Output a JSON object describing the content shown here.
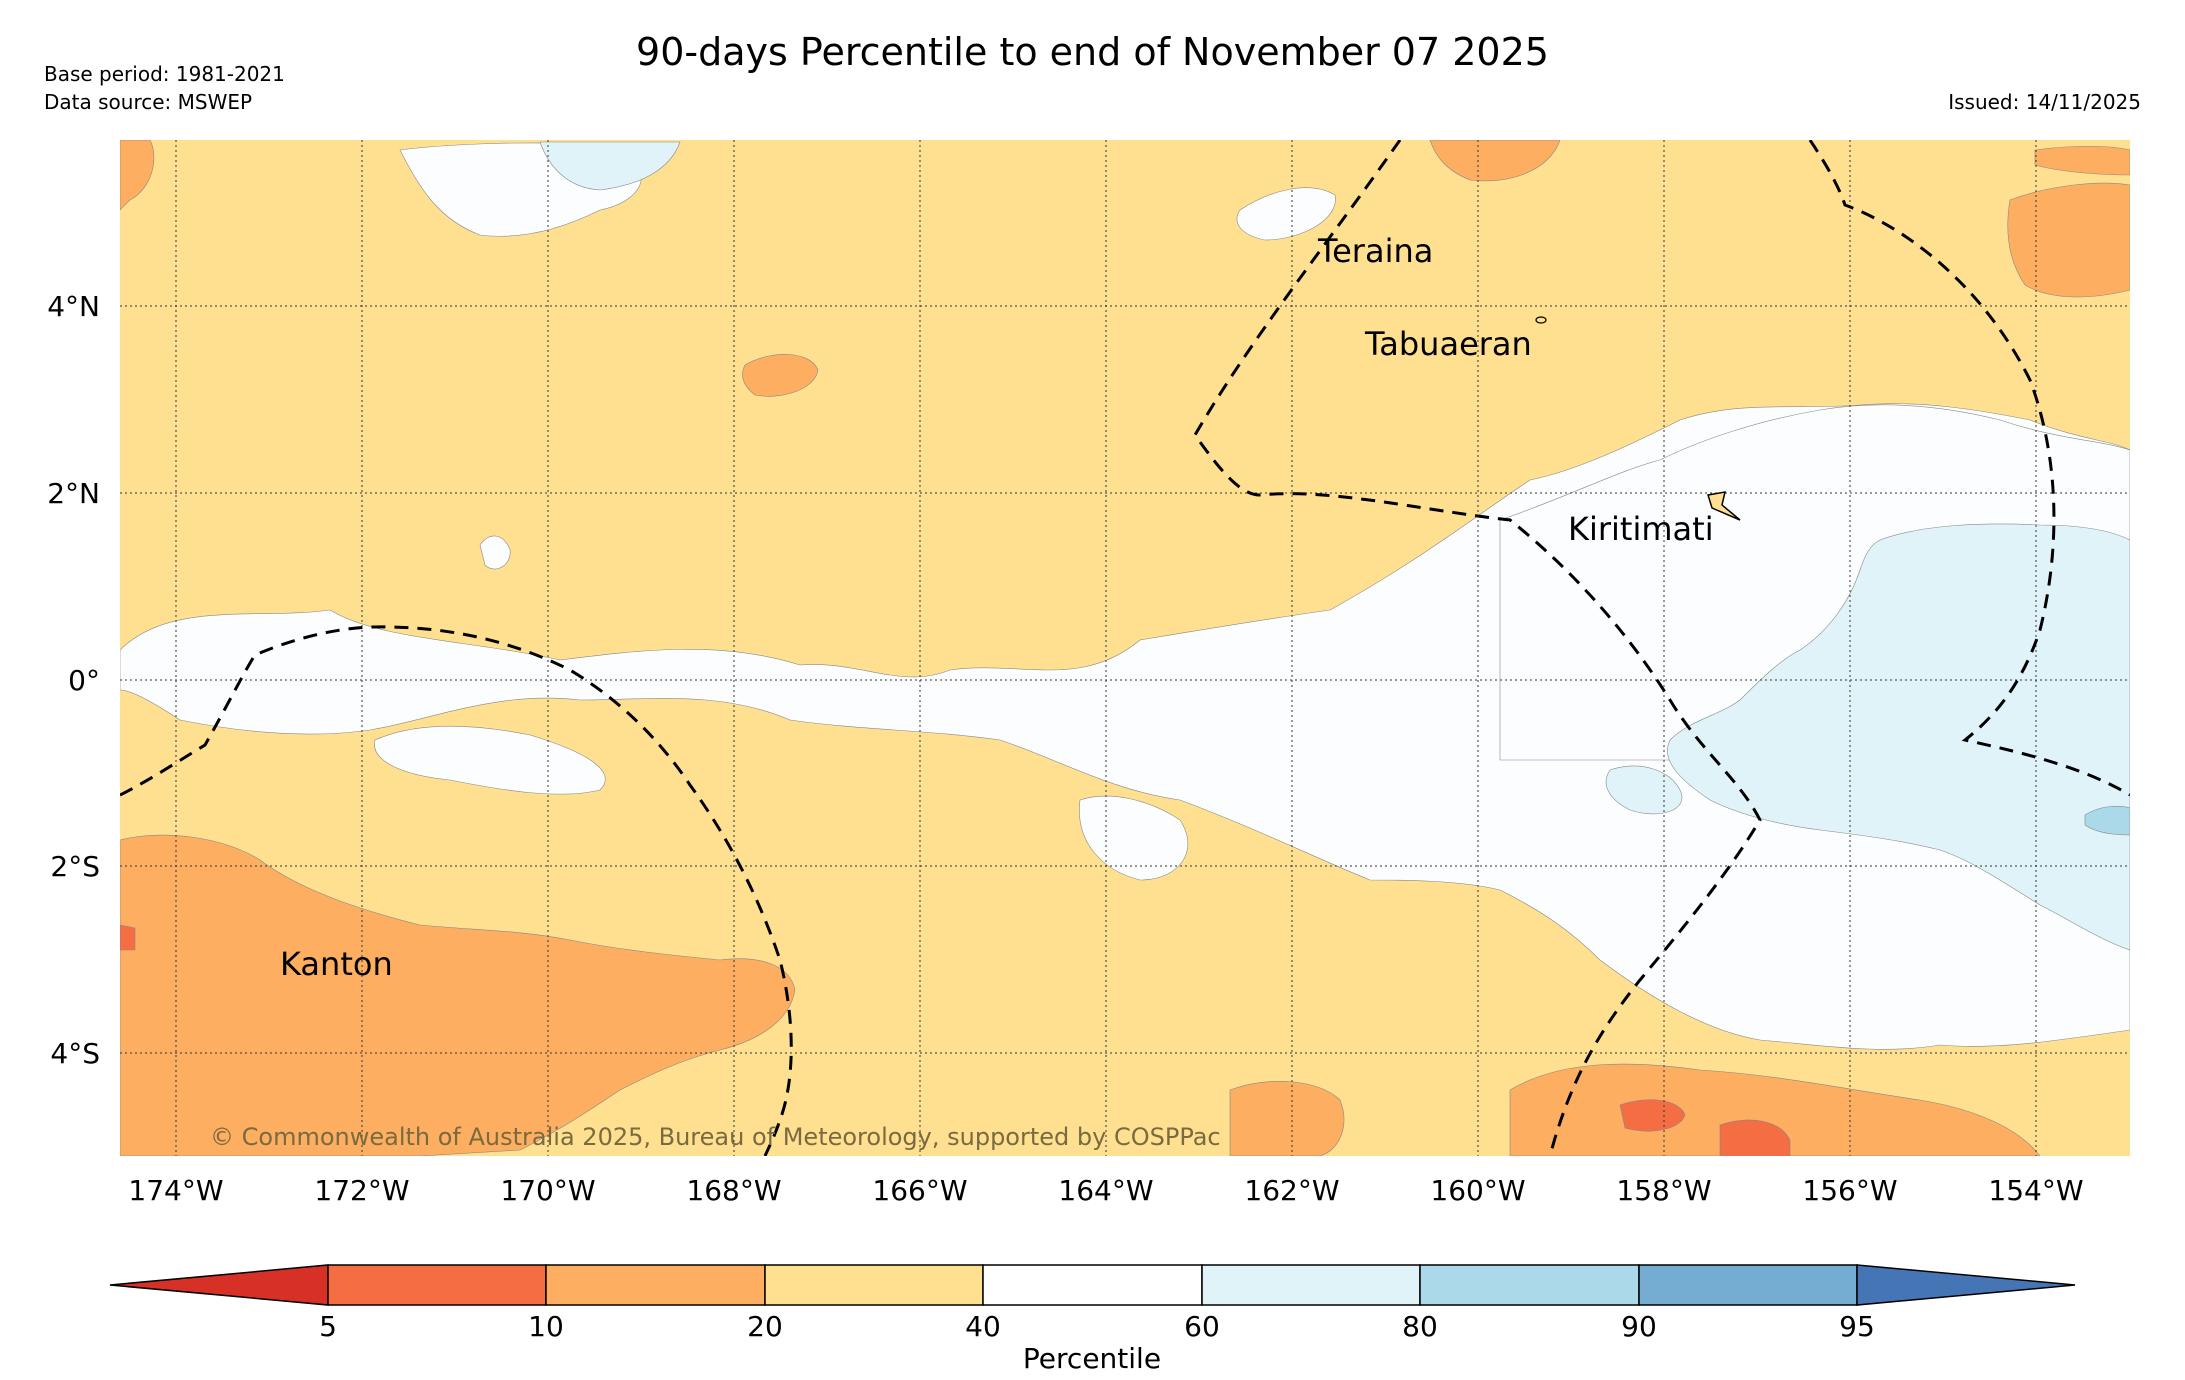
{
  "title": "90-days Percentile to end of November 07 2025",
  "base_period": "Base period: 1981-2021",
  "data_source": "Data source: MSWEP",
  "issued": "Issued: 14/11/2025",
  "copyright": "© Commonwealth of Australia 2025, Bureau of Meteorology, supported by COSPPac",
  "places": [
    {
      "name": "Teraina"
    },
    {
      "name": "Tabuaeran"
    },
    {
      "name": "Kiritimati"
    },
    {
      "name": "Kanton"
    }
  ],
  "lat_labels": [
    "4°N",
    "2°N",
    "0°",
    "2°S",
    "4°S"
  ],
  "lon_labels": [
    "174°W",
    "172°W",
    "170°W",
    "168°W",
    "166°W",
    "164°W",
    "162°W",
    "160°W",
    "158°W",
    "156°W",
    "154°W"
  ],
  "colorbar": {
    "label": "Percentile",
    "ticks": [
      "5",
      "10",
      "20",
      "40",
      "60",
      "80",
      "90",
      "95"
    ],
    "colors": [
      "#d73027",
      "#f46d43",
      "#fdae61",
      "#fee090",
      "#ffffff",
      "#e0f3f8",
      "#abd9e9",
      "#74add1",
      "#4575b4"
    ]
  }
}
